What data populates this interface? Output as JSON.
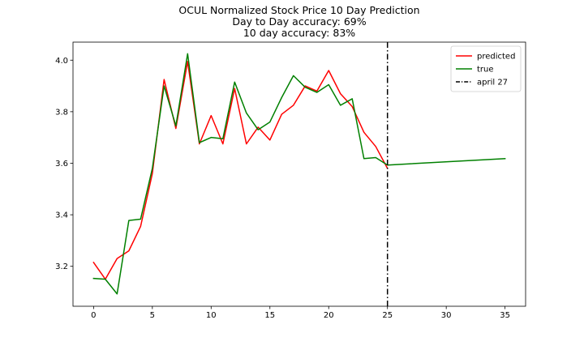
{
  "chart_data": {
    "type": "line",
    "title_lines": [
      "OCUL Normalized Stock Price 10 Day Prediction",
      "Day to Day accuracy: 69%",
      "10 day accuracy: 83%"
    ],
    "xlabel": "",
    "ylabel": "",
    "xlim": [
      -1.75,
      36.75
    ],
    "ylim": [
      3.045,
      4.07
    ],
    "xticks": [
      0,
      5,
      10,
      15,
      20,
      25,
      30,
      35
    ],
    "yticks": [
      3.2,
      3.4,
      3.6,
      3.8,
      4.0
    ],
    "ytick_labels": [
      "3.2",
      "3.4",
      "3.6",
      "3.8",
      "4.0"
    ],
    "grid": false,
    "legend_position": "top-right",
    "series": [
      {
        "name": "predicted",
        "color": "#ff0000",
        "style": "solid",
        "x": [
          0,
          1,
          2,
          3,
          4,
          5,
          6,
          7,
          8,
          9,
          10,
          11,
          12,
          13,
          14,
          15,
          16,
          17,
          18,
          19,
          20,
          21,
          22,
          23,
          24,
          25
        ],
        "y": [
          3.215,
          3.15,
          3.23,
          3.26,
          3.355,
          3.56,
          3.925,
          3.735,
          3.995,
          3.675,
          3.785,
          3.675,
          3.89,
          3.675,
          3.74,
          3.69,
          3.79,
          3.825,
          3.9,
          3.88,
          3.96,
          3.87,
          3.82,
          3.72,
          3.665,
          3.58
        ]
      },
      {
        "name": "true",
        "color": "#008000",
        "style": "solid",
        "x": [
          0,
          1,
          2,
          3,
          4,
          5,
          6,
          7,
          8,
          9,
          10,
          11,
          12,
          13,
          14,
          15,
          16,
          17,
          18,
          19,
          20,
          21,
          22,
          23,
          24,
          25,
          35
        ],
        "y": [
          3.153,
          3.15,
          3.093,
          3.378,
          3.383,
          3.58,
          3.9,
          3.745,
          4.025,
          3.68,
          3.7,
          3.695,
          3.915,
          3.795,
          3.73,
          3.76,
          3.855,
          3.94,
          3.895,
          3.875,
          3.905,
          3.825,
          3.85,
          3.618,
          3.622,
          3.593,
          3.618
        ]
      }
    ],
    "vlines": [
      {
        "name": "april 27",
        "x": 25,
        "color": "#000000",
        "style": "dashdot"
      }
    ]
  }
}
